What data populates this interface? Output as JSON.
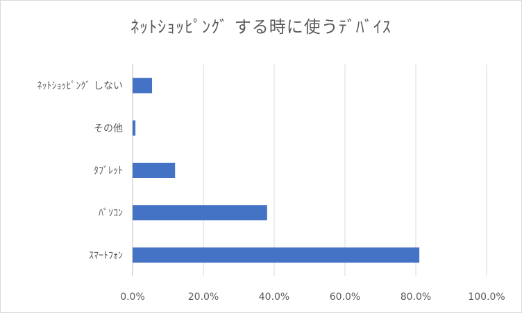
{
  "chart_data": {
    "type": "bar",
    "orientation": "horizontal",
    "title": "ﾈｯﾄｼｮｯﾋﾟﾝｸﾞ する時に使うﾃﾞﾊﾞｲｽ",
    "categories": [
      "ﾈｯﾄｼｮｯﾋﾟﾝｸﾞ しない",
      "その他",
      "ﾀﾌﾞﾚｯﾄ",
      "ﾊﾟｿｺﾝ",
      "ｽﾏｰﾄﾌｫﾝ"
    ],
    "values": [
      5.5,
      0.8,
      12.0,
      38.0,
      81.0
    ],
    "value_unit": "%",
    "xlim": [
      0,
      100
    ],
    "x_ticks": [
      "0.0%",
      "20.0%",
      "40.0%",
      "60.0%",
      "80.0%",
      "100.0%"
    ],
    "x_tick_values": [
      0,
      20,
      40,
      60,
      80,
      100
    ],
    "xlabel": "",
    "ylabel": "",
    "grid": true,
    "legend": "none",
    "colors": {
      "bar": "#4472c4",
      "grid": "#d9d9d9",
      "text": "#595959",
      "border": "#d9d9d9"
    }
  }
}
